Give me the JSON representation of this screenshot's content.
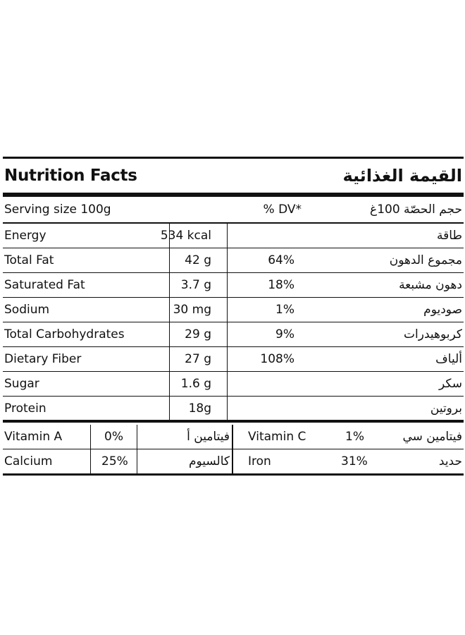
{
  "header": {
    "title_en": "Nutrition Facts",
    "title_ar": "القيمة الغذائية"
  },
  "serving": {
    "label_en": "Serving size 100g",
    "dv_label": "% DV*",
    "label_ar": "حجم الحصّة 100غ"
  },
  "nutrients": [
    {
      "name": "Energy",
      "value": "534 kcal",
      "dv": "",
      "name_ar": "طاقة"
    },
    {
      "name": "Total Fat",
      "value": "42 g",
      "dv": "64%",
      "name_ar": "مجموع الدهون"
    },
    {
      "name": "Saturated Fat",
      "value": "3.7 g",
      "dv": "18%",
      "name_ar": "دهون مشبعة"
    },
    {
      "name": "Sodium",
      "value": "30 mg",
      "dv": "1%",
      "name_ar": "صوديوم"
    },
    {
      "name": "Total Carbohydrates",
      "value": "29 g",
      "dv": "9%",
      "name_ar": "كربوهيدرات"
    },
    {
      "name": "Dietary Fiber",
      "value": "27 g",
      "dv": "108%",
      "name_ar": "ألياف"
    },
    {
      "name": "Sugar",
      "value": "1.6 g",
      "dv": "",
      "name_ar": "سكر"
    },
    {
      "name": "Protein",
      "value": "18g",
      "dv": "",
      "name_ar": "بروتين"
    }
  ],
  "vitamins": {
    "a": {
      "name": "Vitamin A",
      "value": "0%",
      "name_ar": "فيتامين أ"
    },
    "c": {
      "name": "Vitamin C",
      "value": "1%",
      "name_ar": "فيتامين سي"
    },
    "calcium": {
      "name": "Calcium",
      "value": "25%",
      "name_ar": "كالسيوم"
    },
    "iron": {
      "name": "Iron",
      "value": "31%",
      "name_ar": "حديد"
    }
  }
}
